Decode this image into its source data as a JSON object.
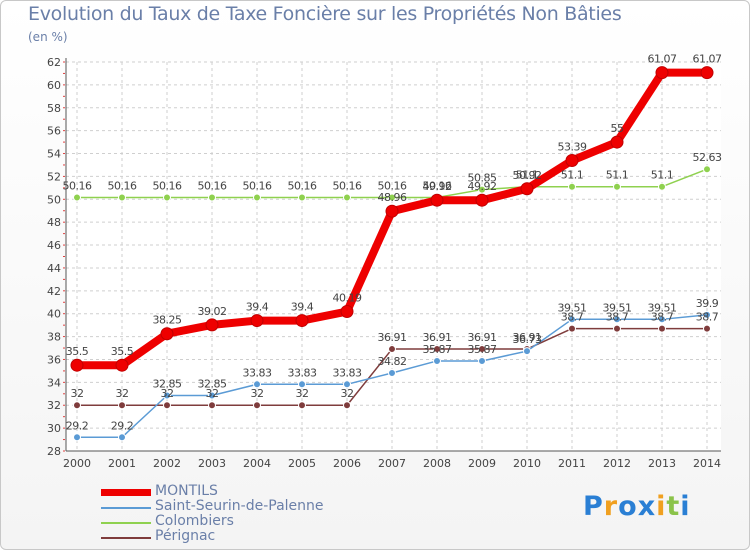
{
  "chart_data": {
    "type": "line",
    "title": "Evolution du Taux de Taxe Foncière sur les Propriétés Non Bâties",
    "ylabel": "(en %)",
    "xlabel": "",
    "ylim": [
      28,
      62
    ],
    "yticks": [
      "28",
      "30",
      "32",
      "34",
      "36",
      "38",
      "40",
      "42",
      "44",
      "46",
      "48",
      "50",
      "52",
      "54",
      "56",
      "58",
      "60",
      "62"
    ],
    "x": [
      "2000",
      "2001",
      "2002",
      "2003",
      "2004",
      "2005",
      "2006",
      "2007",
      "2008",
      "2009",
      "2010",
      "2011",
      "2012",
      "2013",
      "2014"
    ],
    "series": [
      {
        "name": "MONTILS",
        "color": "#ee0000",
        "values": [
          35.5,
          35.5,
          38.25,
          39.02,
          39.4,
          39.4,
          40.19,
          48.96,
          49.92,
          49.92,
          50.92,
          53.39,
          55,
          61.07,
          61.07
        ],
        "labels": [
          "35.5",
          "35.5",
          "38.25",
          "39.02",
          "39.4",
          "39.4",
          "40.19",
          "48.96",
          "49.92",
          "49.92",
          "50.92",
          "53.39",
          "55",
          "61.07",
          "61.07"
        ]
      },
      {
        "name": "Saint-Seurin-de-Palenne",
        "color": "#5b9bd5",
        "values": [
          29.2,
          29.2,
          32.85,
          32.85,
          33.83,
          33.83,
          33.83,
          34.82,
          35.87,
          35.87,
          36.73,
          39.51,
          39.51,
          39.51,
          39.9
        ],
        "labels": [
          "29.2",
          "29.2",
          "32.85",
          "32.85",
          "33.83",
          "33.83",
          "33.83",
          "34.82",
          "35.87",
          "35.87",
          "36.73",
          "39.51",
          "39.51",
          "39.51",
          "39.9"
        ]
      },
      {
        "name": "Colombiers",
        "color": "#8fd14f",
        "values": [
          50.16,
          50.16,
          50.16,
          50.16,
          50.16,
          50.16,
          50.16,
          50.16,
          50.16,
          50.85,
          51.1,
          51.1,
          51.1,
          51.1,
          52.63
        ],
        "labels": [
          "50.16",
          "50.16",
          "50.16",
          "50.16",
          "50.16",
          "50.16",
          "50.16",
          "50.16",
          "50.16",
          "50.85",
          "51.1",
          "51.1",
          "51.1",
          "51.1",
          "52.63"
        ]
      },
      {
        "name": "Pérignac",
        "color": "#7f3c3c",
        "values": [
          32,
          32,
          32,
          32,
          32,
          32,
          32,
          36.91,
          36.91,
          36.91,
          36.91,
          38.7,
          38.7,
          38.7,
          38.7
        ],
        "labels": [
          "32",
          "32",
          "32",
          "32",
          "32",
          "32",
          "32",
          "36.91",
          "36.91",
          "36.91",
          "36.91",
          "38.7",
          "38.7",
          "38.7",
          "38.7"
        ]
      }
    ],
    "legend_position": "bottom-left"
  },
  "logo": {
    "letters": [
      "P",
      "r",
      "o",
      "x",
      "i",
      "t",
      "i"
    ],
    "colors": [
      "#2a7fd4",
      "#f0a020",
      "#2a7fd4",
      "#2a7fd4",
      "#f0a020",
      "#8bc34a",
      "#2a7fd4"
    ]
  }
}
